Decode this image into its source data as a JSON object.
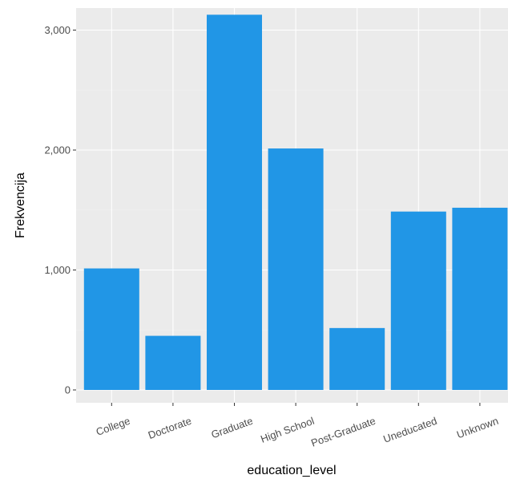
{
  "chart_data": {
    "type": "bar",
    "title": "",
    "xlabel": "education_level",
    "ylabel": "Frekvencija",
    "categories": [
      "College",
      "Doctorate",
      "Graduate",
      "High School",
      "Post-Graduate",
      "Uneducated",
      "Unknown"
    ],
    "values": [
      1013,
      451,
      3128,
      2013,
      516,
      1487,
      1519
    ],
    "ylim": [
      0,
      3300
    ],
    "yticks": [
      0,
      1000,
      2000,
      3000
    ],
    "ytick_labels": [
      "0",
      "1,000",
      "2,000",
      "3,000"
    ],
    "grid": true,
    "legend": "none",
    "x_tick_rotation_deg": -20,
    "colors": {
      "bar": "#2196E6",
      "panel_background": "#EBEBEB",
      "grid_major": "#FFFFFF",
      "grid_minor": "#F2F2F2",
      "tick_text": "#4D4D4D",
      "axis_title": "#000000"
    }
  }
}
